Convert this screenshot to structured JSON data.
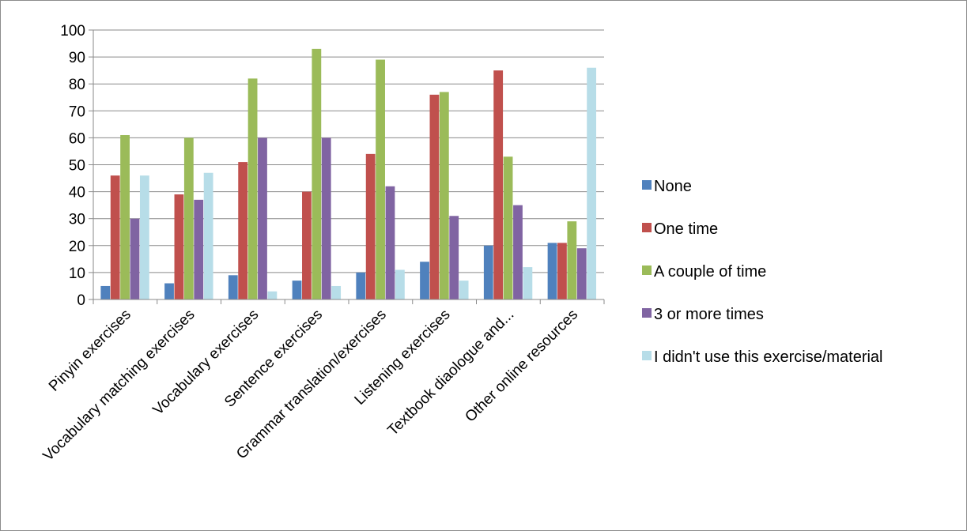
{
  "chart_data": {
    "type": "bar",
    "title": "",
    "xlabel": "",
    "ylabel": "",
    "ylim": [
      0,
      100
    ],
    "yticks": [
      0,
      10,
      20,
      30,
      40,
      50,
      60,
      70,
      80,
      90,
      100
    ],
    "grid": "horizontal",
    "legend_position": "right",
    "categories": [
      "Pinyin exercises",
      "Vocabulary matching exercises",
      "Vocabulary exercises",
      "Sentence exercises",
      "Grammar translation/exercises",
      "Listening exercises",
      "Textbook diaologue and...",
      "Other online resources"
    ],
    "series": [
      {
        "name": "None",
        "color": "#4f81bd",
        "values": [
          5,
          6,
          9,
          7,
          10,
          14,
          20,
          21
        ]
      },
      {
        "name": "One time",
        "color": "#c0504d",
        "values": [
          46,
          39,
          51,
          40,
          54,
          76,
          85,
          21
        ]
      },
      {
        "name": "A couple of time",
        "color": "#9bbb59",
        "values": [
          61,
          60,
          82,
          93,
          89,
          77,
          53,
          29
        ]
      },
      {
        "name": "3 or more times",
        "color": "#8064a2",
        "values": [
          30,
          37,
          60,
          60,
          42,
          31,
          35,
          19
        ]
      },
      {
        "name": "I didn't use this exercise/material",
        "color": "#b7dde8",
        "values": [
          46,
          47,
          3,
          5,
          11,
          7,
          12,
          86
        ]
      }
    ]
  }
}
